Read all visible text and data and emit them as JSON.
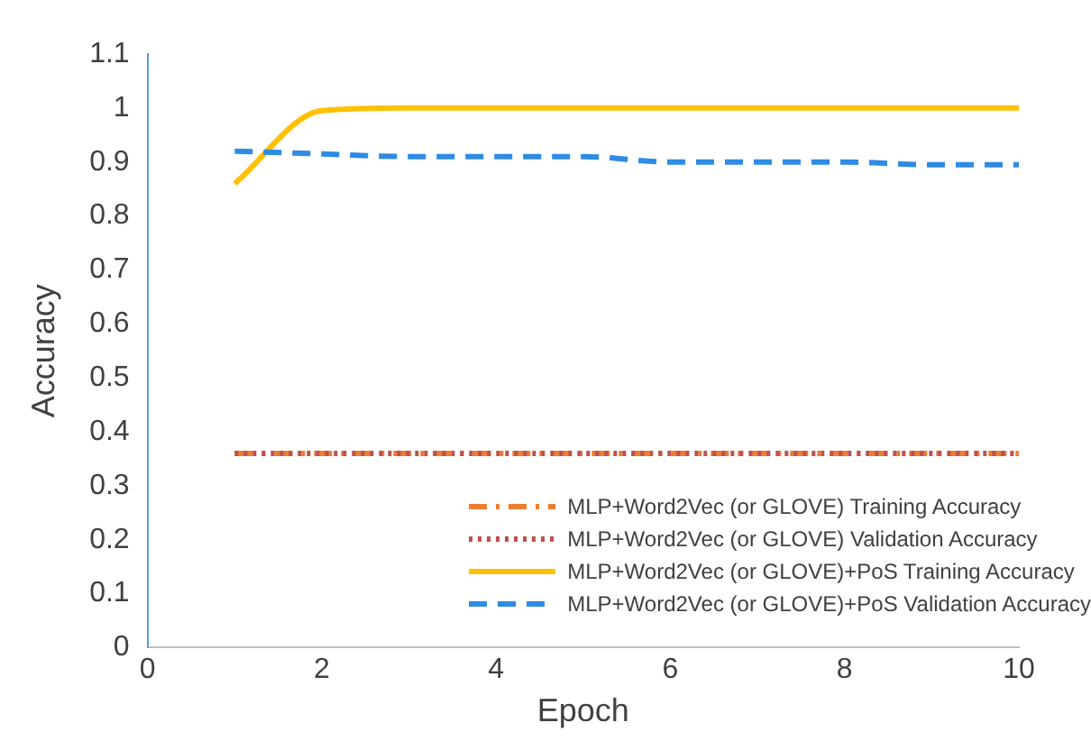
{
  "chart_data": {
    "type": "line",
    "xlabel": "Epoch",
    "ylabel": "Accuracy",
    "x": [
      1,
      2,
      3,
      4,
      5,
      6,
      7,
      8,
      9,
      10
    ],
    "xlim": [
      0,
      10
    ],
    "xticks": [
      0,
      2,
      4,
      6,
      8,
      10
    ],
    "ylim": [
      0,
      1.1
    ],
    "yticks": [
      0,
      0.1,
      0.2,
      0.3,
      0.4,
      0.5,
      0.6,
      0.7,
      0.8,
      0.9,
      1,
      1.1
    ],
    "grid": false,
    "legend": "bottom right",
    "marker": "none",
    "series": [
      {
        "name": "MLP+Word2Vec (or GLOVE) Training Accuracy",
        "color": "#ed7d31",
        "line_style": "dashdot",
        "values": [
          0.36,
          0.36,
          0.36,
          0.36,
          0.36,
          0.36,
          0.36,
          0.36,
          0.36,
          0.36
        ]
      },
      {
        "name": "MLP+Word2Vec (or GLOVE) Validation Accuracy",
        "color": "#c0504d",
        "line_style": "dotted",
        "values": [
          0.36,
          0.36,
          0.36,
          0.36,
          0.36,
          0.36,
          0.36,
          0.36,
          0.36,
          0.36
        ]
      },
      {
        "name": "MLP+Word2Vec (or GLOVE)+PoS Training Accuracy",
        "color": "#ffc000",
        "line_style": "solid",
        "values": [
          0.86,
          0.995,
          1,
          1,
          1,
          1,
          1,
          1,
          1,
          1
        ]
      },
      {
        "name": "MLP+Word2Vec (or GLOVE)+PoS Validation Accuracy",
        "color": "#2e8be6",
        "line_style": "dashed",
        "values": [
          0.92,
          0.915,
          0.91,
          0.91,
          0.91,
          0.9,
          0.9,
          0.9,
          0.895,
          0.895
        ]
      }
    ]
  }
}
